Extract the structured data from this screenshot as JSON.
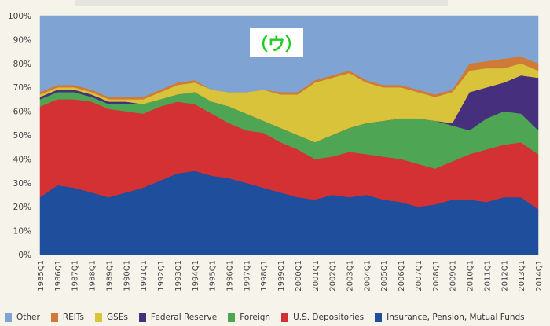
{
  "figure_label": "（ウ）",
  "chart_data": {
    "type": "area",
    "stacked": true,
    "ylim": [
      0,
      100
    ],
    "y_tick_labels": [
      "0%",
      "10%",
      "20%",
      "30%",
      "40%",
      "50%",
      "60%",
      "70%",
      "80%",
      "90%",
      "100%"
    ],
    "x_tick_labels": [
      "1985Q1",
      "1986Q1",
      "1987Q1",
      "1988Q1",
      "1989Q1",
      "1990Q1",
      "1991Q1",
      "1992Q1",
      "1993Q1",
      "1994Q1",
      "1995Q1",
      "1996Q1",
      "1997Q1",
      "1998Q1",
      "1999Q1",
      "2000Q1",
      "2001Q1",
      "2002Q1",
      "2003Q1",
      "2004Q1",
      "2005Q1",
      "2006Q1",
      "2007Q1",
      "2008Q1",
      "2009Q1",
      "2010Q1",
      "2011Q1",
      "2012Q1",
      "2013Q1",
      "2014Q1"
    ],
    "legend_position": "bottom",
    "series": [
      {
        "name": "Insurance, Pension, Mutual Funds",
        "color": "#1f4e9c",
        "values": [
          24,
          29,
          28,
          26,
          24,
          26,
          28,
          31,
          34,
          35,
          33,
          32,
          30,
          28,
          26,
          24,
          23,
          25,
          24,
          25,
          23,
          22,
          20,
          21,
          23,
          23,
          22,
          24,
          24,
          19
        ]
      },
      {
        "name": "U.S. Depositories",
        "color": "#d43134",
        "values": [
          38,
          36,
          37,
          38,
          37,
          34,
          31,
          31,
          30,
          28,
          26,
          23,
          22,
          23,
          21,
          20,
          17,
          16,
          19,
          17,
          18,
          18,
          18,
          15,
          16,
          19,
          22,
          22,
          23,
          23
        ]
      },
      {
        "name": "Foreign",
        "color": "#4ea553",
        "values": [
          3,
          3,
          3,
          2,
          2,
          3,
          4,
          3,
          3,
          5,
          5,
          7,
          7,
          5,
          6,
          6,
          7,
          9,
          10,
          13,
          15,
          17,
          19,
          20,
          15,
          10,
          13,
          14,
          12,
          10
        ]
      },
      {
        "name": "Federal Reserve",
        "color": "#46307e",
        "values": [
          1,
          1,
          1,
          1,
          1,
          1,
          0,
          0,
          0,
          0,
          0,
          0,
          0,
          0,
          0,
          0,
          0,
          0,
          0,
          0,
          0,
          0,
          0,
          0,
          1,
          16,
          13,
          12,
          16,
          22
        ]
      },
      {
        "name": "GSEs",
        "color": "#d8c33a",
        "values": [
          1,
          1,
          1,
          1,
          1,
          1,
          2,
          3,
          4,
          4,
          5,
          6,
          9,
          13,
          14,
          17,
          25,
          24,
          23,
          17,
          14,
          13,
          11,
          10,
          13,
          9,
          8,
          6,
          5,
          3
        ]
      },
      {
        "name": "REITs",
        "color": "#cf7a36",
        "values": [
          1,
          1,
          1,
          1,
          1,
          1,
          1,
          1,
          1,
          1,
          0,
          0,
          0,
          0,
          1,
          1,
          1,
          1,
          1,
          1,
          1,
          1,
          1,
          1,
          1,
          3,
          3,
          4,
          3,
          3
        ]
      },
      {
        "name": "Other",
        "color": "#7fa4d3",
        "values": [
          32,
          29,
          29,
          31,
          34,
          34,
          34,
          31,
          28,
          27,
          31,
          32,
          32,
          31,
          32,
          32,
          27,
          25,
          23,
          27,
          29,
          29,
          31,
          33,
          31,
          20,
          19,
          18,
          17,
          20
        ]
      }
    ]
  },
  "legend": [
    {
      "label": "Other",
      "color": "#7fa4d3"
    },
    {
      "label": "REITs",
      "color": "#cf7a36"
    },
    {
      "label": "GSEs",
      "color": "#d8c33a"
    },
    {
      "label": "Federal Reserve",
      "color": "#46307e"
    },
    {
      "label": "Foreign",
      "color": "#4ea553"
    },
    {
      "label": "U.S. Depositories",
      "color": "#d43134"
    },
    {
      "label": "Insurance, Pension, Mutual Funds",
      "color": "#1f4e9c"
    }
  ]
}
